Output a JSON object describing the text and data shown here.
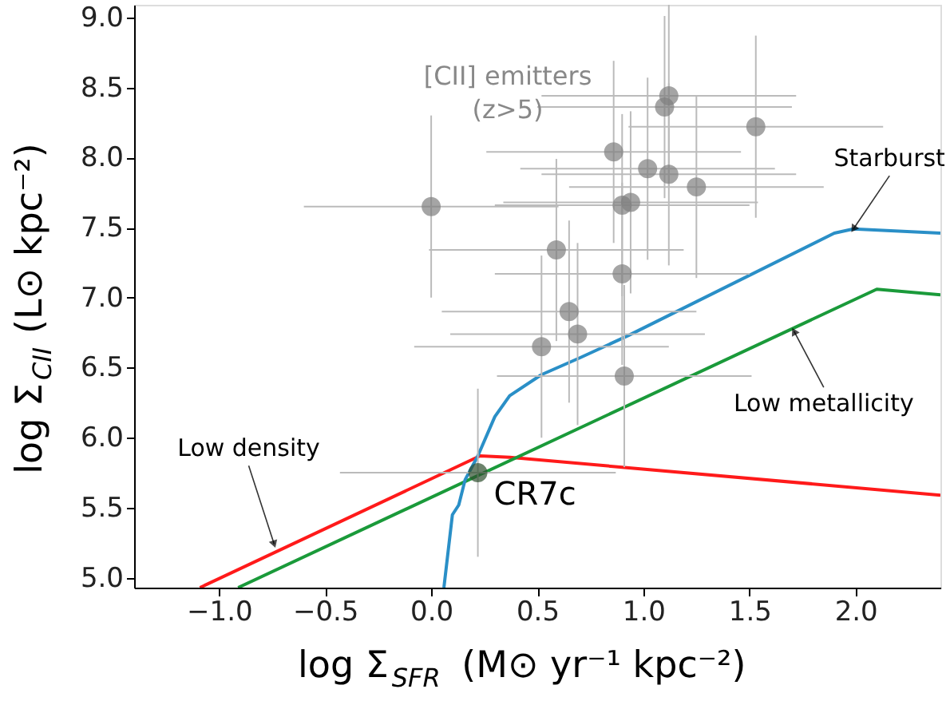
{
  "chart_data": {
    "type": "line",
    "xlabel": "log Σ$_{SFR}$ (M⊙ yr⁻¹ kpc⁻²)",
    "ylabel": "log Σ$_{CII}$ (L⊙ kpc⁻²)",
    "xlim": [
      -1.4,
      2.4
    ],
    "ylim": [
      4.93,
      9.09
    ],
    "xticks": [
      {
        "value": -1,
        "label": "−1.0"
      },
      {
        "value": -0.5,
        "label": "−0.5"
      },
      {
        "value": 0,
        "label": "0.0"
      },
      {
        "value": 0.5,
        "label": "0.5"
      },
      {
        "value": 1,
        "label": "1.0"
      },
      {
        "value": 1.5,
        "label": "1.5"
      },
      {
        "value": 2,
        "label": "2.0"
      }
    ],
    "yticks": [
      {
        "value": 5,
        "label": "5.0"
      },
      {
        "value": 5.5,
        "label": "5.5"
      },
      {
        "value": 6,
        "label": "6.0"
      },
      {
        "value": 6.5,
        "label": "6.5"
      },
      {
        "value": 7,
        "label": "7.0"
      },
      {
        "value": 7.5,
        "label": "7.5"
      },
      {
        "value": 8,
        "label": "8.0"
      },
      {
        "value": 8.5,
        "label": "8.5"
      },
      {
        "value": 9,
        "label": "9.0"
      }
    ],
    "grid": false,
    "series": [
      {
        "type": "scatter",
        "name": "[CII] emitters (z>5)",
        "color": "#808080",
        "marker": "circle",
        "x": [
          0.0,
          1.12,
          1.1,
          1.53,
          0.86,
          1.02,
          1.12,
          1.25,
          0.94,
          0.9,
          0.59,
          0.9,
          0.65,
          0.69,
          0.52,
          0.91
        ],
        "values": [
          7.65,
          8.44,
          8.36,
          8.22,
          8.04,
          7.92,
          7.88,
          7.79,
          7.68,
          7.66,
          7.34,
          7.17,
          6.9,
          6.74,
          6.65,
          6.44
        ],
        "xerrors": [
          0.6,
          0.6,
          0.6,
          0.6,
          0.6,
          0.6,
          0.6,
          0.6,
          0.6,
          0.6,
          0.6,
          0.6,
          0.6,
          0.6,
          0.6,
          0.6
        ],
        "errors": [
          0.65,
          0.65,
          0.65,
          0.65,
          0.65,
          0.65,
          0.65,
          0.65,
          0.65,
          0.65,
          0.65,
          0.65,
          0.65,
          0.65,
          0.65,
          0.65
        ]
      },
      {
        "type": "scatter",
        "name": "CR7c",
        "color": "#2f4f2f",
        "marker": "circle",
        "x": [
          0.22
        ],
        "values": [
          5.75
        ],
        "xerrors": [
          0.65
        ],
        "errors": [
          0.6
        ]
      },
      {
        "color": "#ff1a1a",
        "x": [
          -1.09,
          0.23,
          0.37,
          2.4
        ],
        "values": [
          4.93,
          5.87,
          5.86,
          5.59
        ]
      },
      {
        "color": "#1a9a3a",
        "x": [
          -0.91,
          2.1,
          2.4
        ],
        "values": [
          4.93,
          7.06,
          7.02
        ]
      },
      {
        "color": "#2a8fc7",
        "x": [
          0.06,
          0.1,
          0.13,
          0.16,
          0.22,
          0.3,
          0.37,
          0.52,
          0.7,
          0.93,
          1.9,
          1.99,
          2.4
        ],
        "values": [
          4.93,
          5.45,
          5.52,
          5.7,
          5.87,
          6.15,
          6.3,
          6.45,
          6.57,
          6.73,
          7.46,
          7.49,
          7.46
        ]
      }
    ],
    "annotations": [
      {
        "text": "Starburst",
        "x": 1.99,
        "y": 7.49
      },
      {
        "text": "Low metallicity",
        "x": 1.71,
        "y": 6.76
      },
      {
        "text": "Low density",
        "x": -0.74,
        "y": 5.24
      }
    ]
  }
}
